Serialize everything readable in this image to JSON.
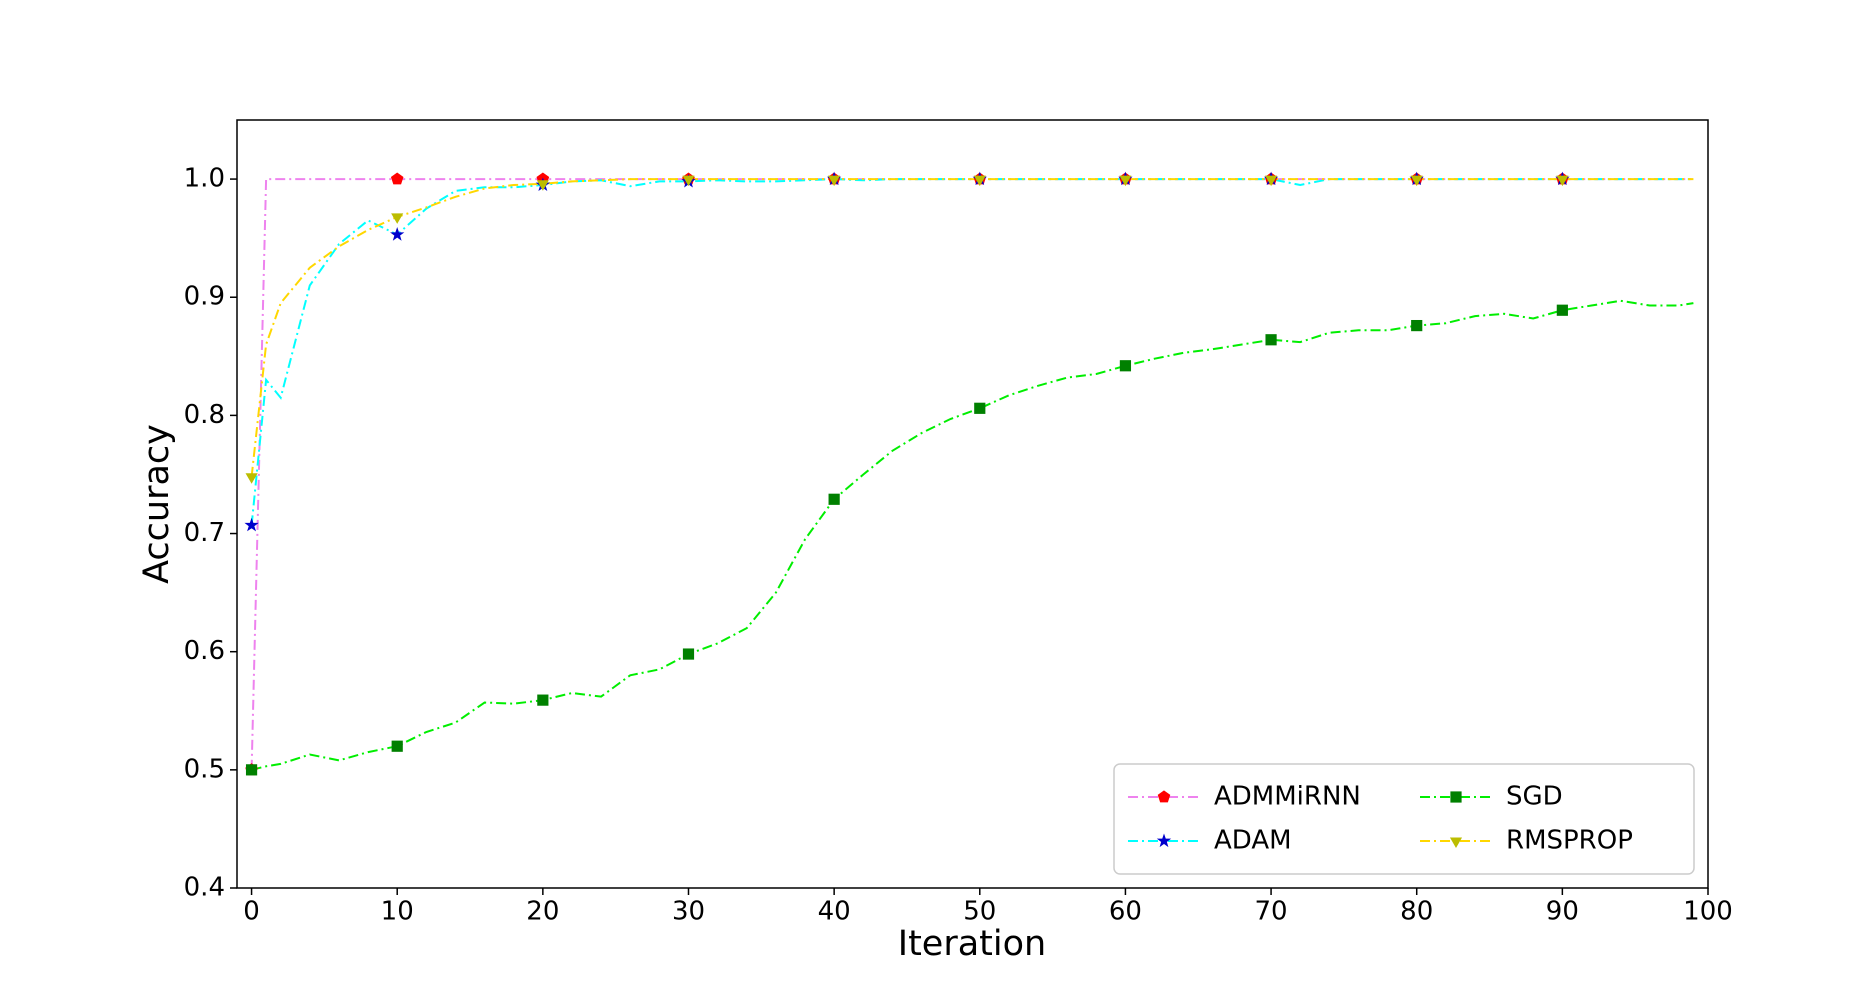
{
  "chart_data": {
    "type": "line",
    "xlabel": "Iteration",
    "ylabel": "Accuracy",
    "x": [
      0,
      1,
      2,
      4,
      6,
      8,
      10,
      12,
      14,
      16,
      18,
      20,
      22,
      24,
      26,
      28,
      30,
      32,
      34,
      36,
      38,
      40,
      42,
      44,
      46,
      48,
      50,
      52,
      54,
      56,
      58,
      60,
      62,
      64,
      66,
      68,
      70,
      72,
      74,
      76,
      78,
      80,
      82,
      84,
      86,
      88,
      90,
      92,
      94,
      96,
      98,
      99
    ],
    "marker_every": 10,
    "series": [
      {
        "name": "ADMMiRNN",
        "color": "#ee82ee",
        "marker_color": "#ff0000",
        "marker": "pentagon",
        "values": [
          0.5,
          1,
          1,
          1,
          1,
          1,
          1,
          1,
          1,
          1,
          1,
          1,
          1,
          1,
          1,
          1,
          1,
          1,
          1,
          1,
          1,
          1,
          1,
          1,
          1,
          1,
          1,
          1,
          1,
          1,
          1,
          1,
          1,
          1,
          1,
          1,
          1,
          1,
          1,
          1,
          1,
          1,
          1,
          1,
          1,
          1,
          1,
          1,
          1,
          1,
          1,
          1
        ]
      },
      {
        "name": "ADAM",
        "color": "#00ffff",
        "marker_color": "#0000cc",
        "marker": "star",
        "values": [
          0.707,
          0.83,
          0.815,
          0.91,
          0.945,
          0.965,
          0.953,
          0.975,
          0.99,
          0.993,
          0.993,
          0.995,
          0.998,
          0.999,
          0.994,
          0.998,
          0.998,
          0.999,
          0.998,
          0.998,
          0.999,
          1,
          0.999,
          1,
          1,
          1,
          1,
          1,
          1,
          1,
          1,
          1,
          1,
          1,
          1,
          1,
          1,
          0.995,
          1,
          1,
          1,
          1,
          1,
          1,
          1,
          1,
          1,
          1,
          1,
          1,
          1,
          1
        ]
      },
      {
        "name": "SGD",
        "color": "#00ee00",
        "marker_color": "#008000",
        "marker": "square",
        "values": [
          0.5,
          0.503,
          0.505,
          0.513,
          0.508,
          0.515,
          0.52,
          0.532,
          0.54,
          0.557,
          0.556,
          0.559,
          0.565,
          0.562,
          0.58,
          0.585,
          0.598,
          0.607,
          0.62,
          0.65,
          0.695,
          0.729,
          0.75,
          0.77,
          0.785,
          0.797,
          0.806,
          0.817,
          0.825,
          0.832,
          0.835,
          0.842,
          0.848,
          0.853,
          0.856,
          0.86,
          0.864,
          0.862,
          0.87,
          0.872,
          0.872,
          0.876,
          0.878,
          0.884,
          0.886,
          0.882,
          0.889,
          0.893,
          0.897,
          0.893,
          0.893,
          0.895
        ]
      },
      {
        "name": "RMSPROP",
        "color": "#ffd700",
        "marker_color": "#bcbd00",
        "marker": "triangle_down",
        "values": [
          0.748,
          0.86,
          0.895,
          0.925,
          0.943,
          0.957,
          0.968,
          0.976,
          0.985,
          0.992,
          0.995,
          0.996,
          0.998,
          0.999,
          1,
          1,
          1,
          1,
          1,
          1,
          1,
          1,
          1,
          1,
          1,
          1,
          1,
          1,
          1,
          1,
          1,
          1,
          1,
          1,
          1,
          1,
          1,
          1,
          1,
          1,
          1,
          1,
          1,
          1,
          1,
          1,
          1,
          1,
          1,
          1,
          1,
          1
        ]
      }
    ],
    "xlim": [
      -1,
      100
    ],
    "ylim": [
      0.4,
      1.05
    ],
    "xticks": [
      0,
      10,
      20,
      30,
      40,
      50,
      60,
      70,
      80,
      90,
      100
    ],
    "yticks": [
      0.4,
      0.5,
      0.6,
      0.7,
      0.8,
      0.9,
      {
        "value": 1,
        "label": "1.0"
      }
    ],
    "legend": "lower right",
    "grid": false
  }
}
